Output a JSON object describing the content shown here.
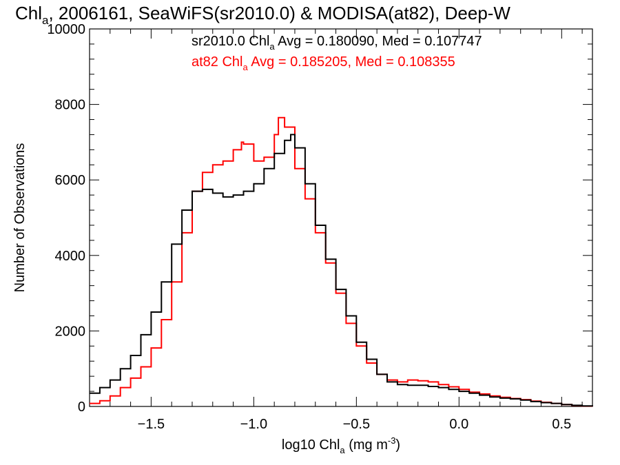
{
  "chart_data": {
    "type": "line",
    "title": {
      "part1": "Chl",
      "sub": "a",
      "part2": ", 2006161, SeaWiFS(sr2010.0) & MODISA(at82), Deep-W"
    },
    "xlabel": {
      "part1": "log10 Chl",
      "sub": "a",
      "part2": " (mg m",
      "sup": "-3",
      "part3": ")"
    },
    "ylabel": "Number of Observations",
    "xlim": [
      -1.8,
      0.65
    ],
    "ylim": [
      0,
      10000
    ],
    "x_ticks": [
      -1.5,
      -1.0,
      -0.5,
      0.0,
      0.5
    ],
    "x_tick_labels": [
      "−1.5",
      "−1.0",
      "−0.5",
      "0.0",
      "0.5"
    ],
    "y_ticks": [
      0,
      2000,
      4000,
      6000,
      8000,
      10000
    ],
    "y_tick_labels": [
      "0",
      "2000",
      "4000",
      "6000",
      "8000",
      "10000"
    ],
    "stats": [
      {
        "part1": "sr2010.0 Chl",
        "sub": "a",
        "part2": " Avg = 0.180090, Med = 0.107747",
        "color": "#000000"
      },
      {
        "part1": "at82 Chl",
        "sub": "a",
        "part2": " Avg = 0.185205, Med = 0.108355",
        "color": "#ff0000"
      }
    ],
    "series": [
      {
        "color": "#000000",
        "x": [
          -1.8,
          -1.75,
          -1.7,
          -1.65,
          -1.6,
          -1.55,
          -1.5,
          -1.45,
          -1.4,
          -1.35,
          -1.3,
          -1.25,
          -1.2,
          -1.15,
          -1.1,
          -1.05,
          -1.0,
          -0.95,
          -0.9,
          -0.85,
          -0.82,
          -0.8,
          -0.75,
          -0.7,
          -0.65,
          -0.6,
          -0.55,
          -0.5,
          -0.45,
          -0.4,
          -0.35,
          -0.3,
          -0.25,
          -0.2,
          -0.15,
          -0.1,
          -0.05,
          0.0,
          0.05,
          0.1,
          0.15,
          0.2,
          0.25,
          0.3,
          0.35,
          0.4,
          0.45,
          0.5,
          0.55,
          0.6,
          0.65
        ],
        "y": [
          350,
          500,
          700,
          1000,
          1350,
          1900,
          2500,
          3300,
          4300,
          5200,
          5700,
          5750,
          5650,
          5550,
          5600,
          5700,
          5900,
          6300,
          6700,
          7050,
          7200,
          6850,
          5900,
          4800,
          3900,
          3100,
          2400,
          1700,
          1250,
          850,
          650,
          580,
          560,
          560,
          530,
          500,
          450,
          400,
          350,
          300,
          250,
          220,
          200,
          170,
          130,
          100,
          80,
          50,
          30,
          15,
          5
        ]
      },
      {
        "color": "#ff0000",
        "x": [
          -1.8,
          -1.75,
          -1.7,
          -1.65,
          -1.6,
          -1.55,
          -1.5,
          -1.45,
          -1.4,
          -1.35,
          -1.3,
          -1.25,
          -1.2,
          -1.15,
          -1.1,
          -1.06,
          -1.05,
          -1.0,
          -0.95,
          -0.9,
          -0.88,
          -0.85,
          -0.8,
          -0.75,
          -0.7,
          -0.65,
          -0.6,
          -0.55,
          -0.5,
          -0.45,
          -0.4,
          -0.35,
          -0.3,
          -0.25,
          -0.2,
          -0.15,
          -0.1,
          -0.05,
          0.0,
          0.05,
          0.1,
          0.15,
          0.2,
          0.25,
          0.3,
          0.35,
          0.4,
          0.45,
          0.5,
          0.55,
          0.6,
          0.65
        ],
        "y": [
          80,
          150,
          280,
          500,
          750,
          1050,
          1550,
          2300,
          3300,
          4600,
          5700,
          6200,
          6400,
          6500,
          6800,
          7000,
          6950,
          6500,
          6600,
          7200,
          7650,
          7400,
          6300,
          5500,
          4600,
          3800,
          3000,
          2200,
          1600,
          1150,
          850,
          700,
          650,
          700,
          680,
          650,
          580,
          520,
          450,
          380,
          330,
          280,
          240,
          210,
          180,
          140,
          110,
          80,
          50,
          25,
          10,
          5
        ]
      }
    ]
  }
}
